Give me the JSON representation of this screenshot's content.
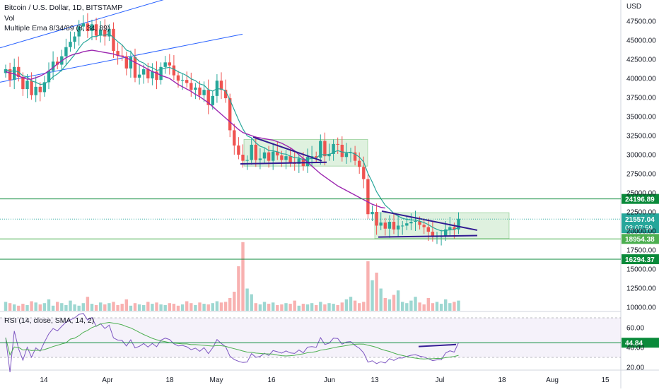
{
  "chart_data": {
    "type": "candlestick",
    "title": "Bitcoin / U.S. Dollar, 1D, BITSTAMP",
    "legend": [
      "Vol",
      "Multiple Ema 8/34/89 (8, 34, 89)"
    ],
    "rsi_label": "RSI (14, close, SMA, 14, 2)",
    "currency": "USD",
    "price_ylim": [
      8500,
      50000
    ],
    "price_ticks": [
      "47500.00",
      "45000.00",
      "42500.00",
      "40000.00",
      "37500.00",
      "35000.00",
      "32500.00",
      "30000.00",
      "27500.00",
      "25000.00",
      "22500.00",
      "20000.00",
      "17500.00",
      "15000.00",
      "12500.00",
      "10000.00"
    ],
    "rsi_ticks": [
      "60.00",
      "40.00",
      "20.00"
    ],
    "x_ticks": [
      "14",
      "Apr",
      "18",
      "May",
      "16",
      "Jun",
      "13",
      "Jul",
      "18",
      "Aug",
      "15"
    ],
    "horizontal_levels": [
      {
        "label": "24196.89",
        "value": 24196.89,
        "color": "#0a8a3a"
      },
      {
        "label": "18954.38",
        "value": 18954.38,
        "color": "#4caf50"
      },
      {
        "label": "16294.37",
        "value": 16294.37,
        "color": "#0a8a3a"
      }
    ],
    "current_price": {
      "label": "21557.04",
      "countdown": "03:07:59",
      "value": 21557.04,
      "color": "#26a69a"
    },
    "rsi_current": {
      "label": "44.84",
      "value": 44.84
    },
    "series": [
      {
        "name": "close",
        "values": [
          41200,
          39800,
          41500,
          40200,
          38600,
          39700,
          37800,
          38900,
          38200,
          39500,
          41000,
          42200,
          41800,
          42900,
          44100,
          44800,
          45500,
          46800,
          47200,
          46200,
          47100,
          45600,
          46400,
          45500,
          46500,
          43600,
          43000,
          42900,
          41300,
          42800,
          40100,
          40500,
          41200,
          40000,
          40900,
          39800,
          41500,
          42100,
          41700,
          40400,
          39700,
          39800,
          39400,
          38500,
          38800,
          37800,
          38500,
          36500,
          37700,
          39700,
          38500,
          37400,
          33200,
          31200,
          30000,
          29200,
          29300,
          31300,
          29300,
          29500,
          30300,
          29200,
          30400,
          29900,
          29300,
          29800,
          29000,
          28800,
          29500,
          28500,
          29700,
          29800,
          29600,
          31800,
          29800,
          30100,
          31400,
          31300,
          29700,
          30200,
          30300,
          29200,
          28400,
          26800,
          22200,
          22500,
          20700,
          21100,
          20300,
          21200,
          20200,
          20700,
          20700,
          21000,
          21200,
          21300,
          20800,
          20500,
          19900,
          19200,
          19300,
          19300,
          20200,
          20500,
          20200,
          21600
        ]
      },
      {
        "name": "ema34",
        "values": [
          40900,
          40700,
          40600,
          40300,
          40100,
          39900,
          39900,
          40100,
          40300,
          40600,
          41000,
          41400,
          41900,
          42300,
          42700,
          43000,
          43200,
          43300,
          43500,
          43600,
          43700,
          43600,
          43500,
          43400,
          43300,
          43200,
          43000,
          42900,
          42700,
          42400,
          42100,
          41800,
          41500,
          41200,
          40900,
          40700,
          40400,
          40200,
          40000,
          39600,
          39200,
          38900,
          38600,
          38300,
          37900,
          37600,
          37200,
          36800,
          36300,
          35800,
          35300,
          34800,
          34300,
          33800,
          33300,
          32900,
          32700,
          32500,
          32300,
          32200,
          32100,
          32000,
          31900,
          31700,
          31500,
          31200,
          30900,
          30500,
          30000,
          29500,
          29000,
          28500,
          28000,
          27500,
          27100,
          26700,
          26300,
          25900,
          25600,
          25300,
          25000,
          24700,
          24400,
          24100,
          23800,
          23500,
          23300,
          23100,
          23000
        ]
      }
    ],
    "volume_note": "volume histogram shown at bottom of price pane",
    "grid": true
  }
}
